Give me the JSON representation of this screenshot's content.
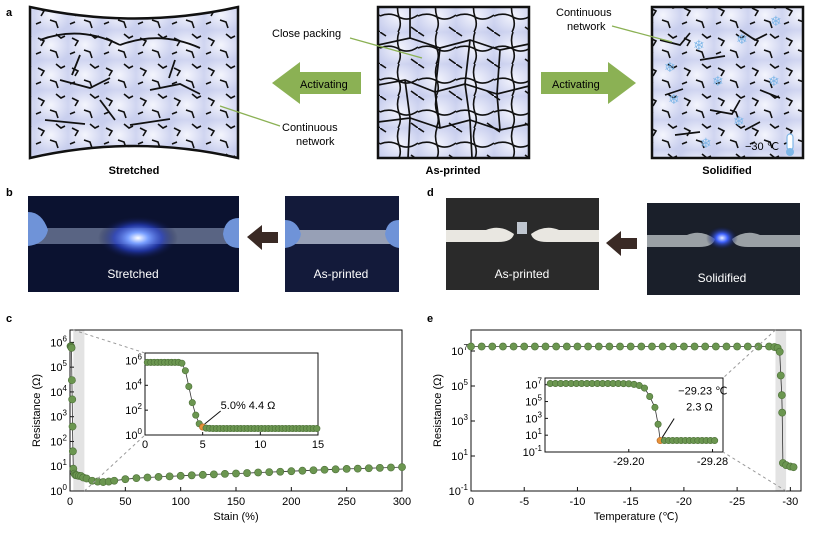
{
  "panel_labels": {
    "a": "a",
    "b": "b",
    "c": "c",
    "d": "d",
    "e": "e"
  },
  "panel_a": {
    "captions": {
      "stretched": "Stretched",
      "as_printed": "As-printed",
      "solidified": "Solidified"
    },
    "arrow_left_label": "Activating",
    "arrow_right_label": "Activating",
    "ann_close_packing": "Close packing",
    "ann_continuous_network_1": [
      "Continuous",
      "network"
    ],
    "ann_continuous_network_2": [
      "Continuous",
      "network"
    ],
    "temperature_label": "−30 ℃",
    "colors": {
      "cell": "#d7dcf2",
      "cell_light": "#eef0fb",
      "boundary": "#111111",
      "arrow": "#8bb154",
      "annotation": "#8bb154"
    },
    "icons": [
      "snowflake-icon",
      "thermometer-icon"
    ]
  },
  "panel_b": {
    "left_photo_label": "Stretched",
    "right_photo_label": "As-printed",
    "arrow_color": "#3a2a25"
  },
  "panel_d": {
    "left_photo_label": "As-printed",
    "right_photo_label": "Solidified",
    "arrow_color": "#3a2a25"
  },
  "chart_data": [
    {
      "id": "c",
      "type": "scatter",
      "xlabel": "Stain (%)",
      "ylabel": "Resistance (Ω)",
      "xlim": [
        0,
        300
      ],
      "ylim_log10": [
        0,
        6.5
      ],
      "x_ticks": [
        0,
        50,
        100,
        150,
        200,
        250,
        300
      ],
      "y_ticks_log10": [
        0,
        1,
        2,
        3,
        4,
        5,
        6
      ],
      "y_tick_labels": [
        "10",
        "10",
        "10",
        "10",
        "10",
        "10",
        "10"
      ],
      "y_tick_exponents": [
        "0",
        "1",
        "2",
        "3",
        "4",
        "5",
        "6"
      ],
      "series": [
        {
          "color": "#6b9650",
          "x": [
            0.5,
            0.8,
            1.1,
            1.4,
            1.7,
            2,
            2.3,
            2.6,
            3,
            4,
            5,
            6,
            8,
            10,
            12,
            15,
            20,
            25,
            30,
            35,
            40,
            50,
            60,
            70,
            80,
            90,
            100,
            110,
            120,
            130,
            140,
            150,
            160,
            170,
            180,
            190,
            200,
            210,
            220,
            230,
            240,
            250,
            260,
            270,
            280,
            290,
            300
          ],
          "y": [
            700000,
            700000,
            650000,
            600000,
            30000,
            5000,
            400,
            40,
            8,
            5,
            4.4,
            4.3,
            4.1,
            4,
            3.5,
            3.2,
            2.6,
            2.4,
            2.3,
            2.4,
            2.6,
            3,
            3.3,
            3.5,
            3.7,
            3.9,
            4.1,
            4.3,
            4.5,
            4.7,
            4.9,
            5.1,
            5.3,
            5.6,
            5.8,
            6,
            6.3,
            6.6,
            6.9,
            7.2,
            7.5,
            7.8,
            8,
            8.3,
            8.6,
            8.9,
            9.2
          ]
        }
      ],
      "inset": {
        "xlim": [
          0,
          15
        ],
        "ylim_log10": [
          0,
          6.6
        ],
        "x_ticks": [
          0,
          5,
          10,
          15
        ],
        "y_ticks_log10": [
          0,
          2,
          4,
          6
        ],
        "y_tick_labels": [
          "10",
          "10",
          "10",
          "10"
        ],
        "y_tick_exponents": [
          "0",
          "2",
          "4",
          "6"
        ],
        "x": [
          0.2,
          0.5,
          0.8,
          1.1,
          1.4,
          1.7,
          2,
          2.3,
          2.6,
          2.9,
          3.2,
          3.5,
          3.8,
          4.1,
          4.4,
          4.7,
          5,
          5.3,
          5.6,
          5.9,
          6.2,
          6.5,
          6.8,
          7.1,
          7.4,
          7.7,
          8,
          8.3,
          8.6,
          8.9,
          9.2,
          9.5,
          9.8,
          10.1,
          10.4,
          10.7,
          11,
          11.3,
          11.6,
          11.9,
          12.2,
          12.5,
          12.8,
          13.1,
          13.4,
          13.7,
          14,
          14.3,
          14.6,
          14.9
        ],
        "y": [
          700000,
          700000,
          700000,
          700000,
          700000,
          700000,
          700000,
          700000,
          700000,
          700000,
          600000,
          150000,
          8000,
          400,
          40,
          8,
          4.4,
          3.6,
          3.4,
          3.3,
          3.3,
          3.3,
          3.3,
          3.3,
          3.3,
          3.3,
          3.3,
          3.3,
          3.3,
          3.3,
          3.3,
          3.3,
          3.3,
          3.3,
          3.3,
          3.3,
          3.3,
          3.3,
          3.3,
          3.3,
          3.3,
          3.3,
          3.3,
          3.3,
          3.3,
          3.3,
          3.3,
          3.3,
          3.3,
          3.3
        ],
        "highlight_index": 16,
        "annotation": "5.0% 4.4 Ω"
      }
    },
    {
      "id": "e",
      "type": "scatter",
      "xlabel": "Temperature (℃)",
      "ylabel": "Resistance (Ω)",
      "xlim": [
        0,
        -31
      ],
      "ylim_log10": [
        -1,
        8.2
      ],
      "x_ticks": [
        0,
        -5,
        -10,
        -15,
        -20,
        -25,
        -30
      ],
      "y_ticks_log10": [
        -1,
        1,
        3,
        5,
        7
      ],
      "y_tick_labels": [
        "10",
        "10",
        "10",
        "10",
        "10"
      ],
      "y_tick_exponents": [
        "-1",
        "1",
        "3",
        "5",
        "7"
      ],
      "series": [
        {
          "color": "#6b9650",
          "x": [
            0,
            -1,
            -2,
            -3,
            -4,
            -5,
            -6,
            -7,
            -8,
            -9,
            -10,
            -11,
            -12,
            -13,
            -14,
            -15,
            -16,
            -17,
            -18,
            -19,
            -20,
            -21,
            -22,
            -23,
            -24,
            -25,
            -26,
            -27,
            -28,
            -28.5,
            -28.8,
            -29,
            -29.1,
            -29.2,
            -29.23,
            -29.3,
            -29.6,
            -30,
            -30.3
          ],
          "y": [
            18000000,
            18000000,
            18000000,
            18000000,
            18000000,
            18000000,
            18000000,
            18000000,
            18000000,
            18000000,
            18000000,
            18000000,
            18000000,
            18000000,
            18000000,
            18000000,
            18000000,
            18000000,
            18000000,
            18000000,
            18000000,
            18000000,
            18000000,
            18000000,
            18000000,
            18000000,
            18000000,
            18000000,
            18000000,
            17000000,
            15000000,
            9000000,
            400000,
            30000,
            3000,
            4,
            3,
            2.5,
            2.3
          ]
        }
      ],
      "inset": {
        "xlim": [
          -29.12,
          -29.29
        ],
        "ylim_log10": [
          -1,
          7.8
        ],
        "x_tick_labels": [
          "-29.20",
          "-29.28"
        ],
        "x_ticks": [
          -29.2,
          -29.28
        ],
        "y_ticks_log10": [
          -1,
          1,
          3,
          5,
          7
        ],
        "y_tick_labels": [
          "10",
          "10",
          "10",
          "10",
          "10"
        ],
        "y_tick_exponents": [
          "-1",
          "1",
          "3",
          "5",
          "7"
        ],
        "x": [
          -29.125,
          -29.13,
          -29.135,
          -29.14,
          -29.145,
          -29.15,
          -29.155,
          -29.16,
          -29.165,
          -29.17,
          -29.175,
          -29.18,
          -29.185,
          -29.19,
          -29.195,
          -29.2,
          -29.205,
          -29.21,
          -29.215,
          -29.22,
          -29.225,
          -29.228,
          -29.23,
          -29.234,
          -29.238,
          -29.242,
          -29.246,
          -29.25,
          -29.254,
          -29.258,
          -29.262,
          -29.266,
          -29.27,
          -29.274,
          -29.278,
          -29.282
        ],
        "y": [
          14000000,
          14000000,
          14000000,
          14000000,
          14000000,
          14000000,
          14000000,
          14000000,
          14000000,
          14000000,
          14000000,
          14000000,
          14000000,
          14000000,
          13500000,
          13000000,
          11000000,
          8000000,
          4000000,
          400000,
          20000,
          200,
          2.3,
          2.3,
          2.3,
          2.3,
          2.3,
          2.3,
          2.3,
          2.3,
          2.3,
          2.3,
          2.3,
          2.3,
          2.3,
          2.3
        ],
        "highlight_index": 22,
        "annotation": [
          "−29.23 ℃",
          "2.3 Ω"
        ]
      }
    }
  ]
}
